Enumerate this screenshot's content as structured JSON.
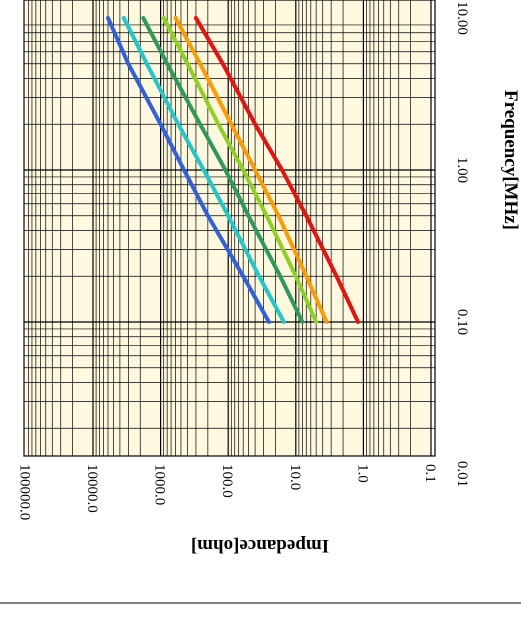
{
  "chart_data": {
    "type": "line",
    "orientation": "rotated-90",
    "xlabel": "Frequency[MHz]",
    "ylabel": "Impedance[ohm]",
    "x_scale": "log",
    "y_scale": "log",
    "xlim": [
      0.01,
      10
    ],
    "ylim": [
      0.1,
      100000
    ],
    "x_tick_labels": [
      "0.01",
      "0.10",
      "1.00",
      "10.00"
    ],
    "y_tick_labels": [
      "0.1",
      "1.0",
      "10.0",
      "100.0",
      "1000.0",
      "10000.0",
      "100000.0"
    ],
    "grid": true,
    "series": [
      {
        "color": "#3060e0",
        "x": [
          0.1,
          0.2,
          0.5,
          1,
          2,
          5,
          10
        ],
        "y": [
          25,
          60,
          200,
          450,
          1000,
          3000,
          6000
        ]
      },
      {
        "color": "#20c8c8",
        "x": [
          0.1,
          0.2,
          0.5,
          1,
          2,
          5,
          10
        ],
        "y": [
          15,
          35,
          100,
          230,
          550,
          1600,
          3500
        ]
      },
      {
        "color": "#2e9a5a",
        "x": [
          0.1,
          0.2,
          0.5,
          1,
          2,
          5,
          10
        ],
        "y": [
          8,
          17,
          50,
          110,
          260,
          800,
          1800
        ]
      },
      {
        "color": "#90d020",
        "x": [
          0.1,
          0.2,
          0.5,
          1,
          2,
          5,
          10
        ],
        "y": [
          5,
          10,
          27,
          60,
          140,
          400,
          900
        ]
      },
      {
        "color": "#ff9a00",
        "x": [
          0.1,
          0.2,
          0.5,
          1,
          2,
          5,
          10
        ],
        "y": [
          3.5,
          7,
          18,
          40,
          90,
          260,
          600
        ]
      },
      {
        "color": "#e81010",
        "x": [
          0.1,
          0.2,
          0.5,
          1,
          2,
          5,
          10
        ],
        "y": [
          1.2,
          2.5,
          7,
          16,
          40,
          120,
          300
        ]
      }
    ]
  }
}
